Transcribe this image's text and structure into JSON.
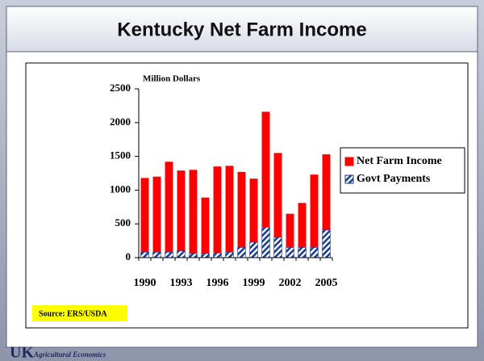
{
  "chart_data": {
    "type": "bar",
    "title": "Kentucky Net Farm Income",
    "y_label": "Million Dollars",
    "categories": [
      "1990",
      null,
      null,
      "1993",
      null,
      null,
      "1996",
      null,
      null,
      "1999",
      null,
      null,
      "2002",
      null,
      null,
      "2005"
    ],
    "series": [
      {
        "name": "Net Farm Income",
        "color": "#ff0000",
        "values": [
          1180,
          1200,
          1420,
          1290,
          1300,
          890,
          1350,
          1360,
          1270,
          1170,
          2160,
          1550,
          650,
          810,
          1230,
          1530
        ]
      },
      {
        "name": "Govt Payments",
        "color": "#1c3f94",
        "values": [
          80,
          80,
          80,
          100,
          60,
          60,
          70,
          80,
          150,
          230,
          450,
          300,
          150,
          150,
          150,
          410
        ]
      }
    ],
    "overlap": true,
    "ylim": [
      0,
      2500
    ],
    "yticks": [
      0,
      500,
      1000,
      1500,
      2000,
      2500
    ],
    "grid": false,
    "legend": "right",
    "source": "Source:  ERS/USDA"
  },
  "footer": {
    "logo": "UK",
    "department": "Agricultural Economics"
  }
}
